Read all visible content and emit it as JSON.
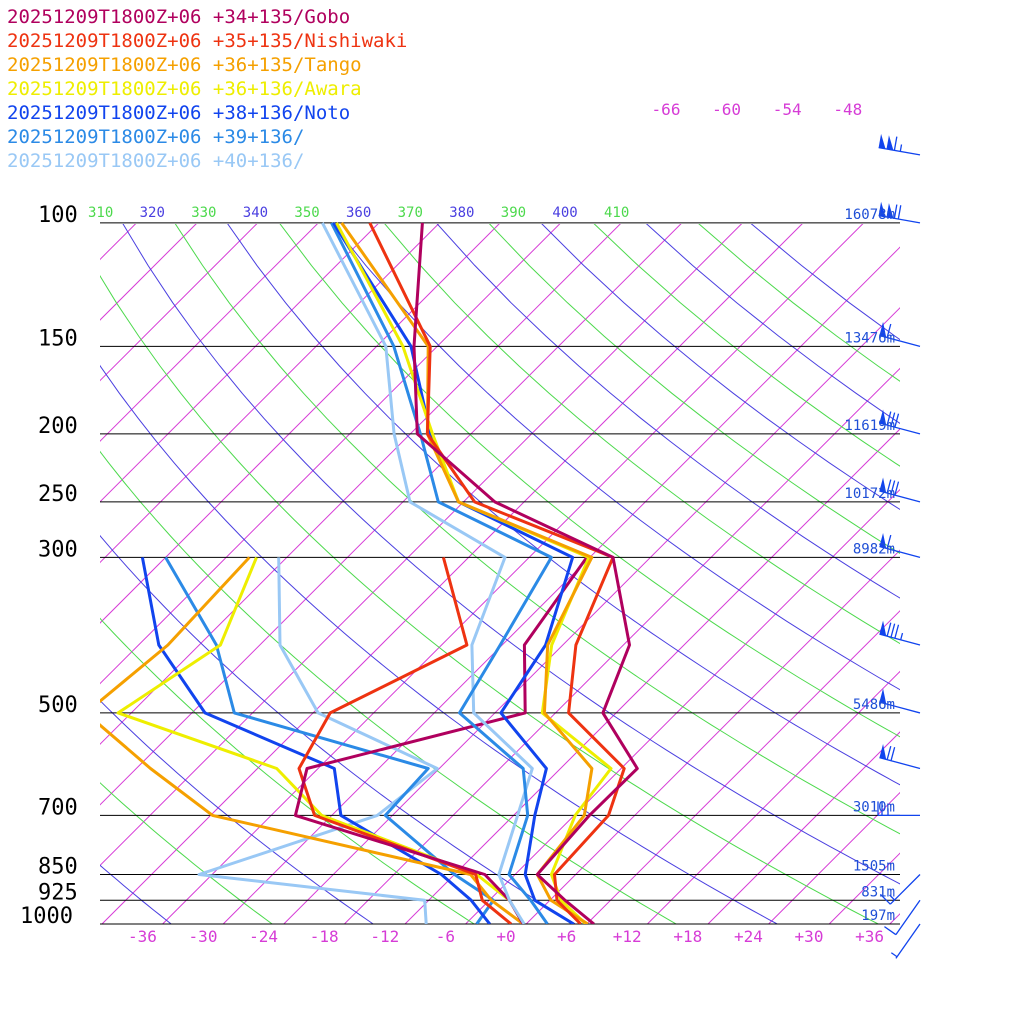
{
  "chart_data": {
    "type": "line",
    "legend": [
      {
        "label": "20251209T1800Z+06 +34+135/Gobo",
        "color": "#b0005e"
      },
      {
        "label": "20251209T1800Z+06 +35+135/Nishiwaki",
        "color": "#ee3311"
      },
      {
        "label": "20251209T1800Z+06 +36+135/Tango",
        "color": "#f5a000"
      },
      {
        "label": "20251209T1800Z+06 +36+136/Awara",
        "color": "#eeee00"
      },
      {
        "label": "20251209T1800Z+06 +38+136/Noto",
        "color": "#1144ee"
      },
      {
        "label": "20251209T1800Z+06 +39+136/",
        "color": "#2b8ae6"
      },
      {
        "label": "20251209T1800Z+06 +40+136/",
        "color": "#99c8f5"
      }
    ],
    "pressure_levels": [
      {
        "p": 100,
        "label": "100",
        "height": "16078m"
      },
      {
        "p": 150,
        "label": "150",
        "height": "13476m"
      },
      {
        "p": 200,
        "label": "200",
        "height": "11619m"
      },
      {
        "p": 250,
        "label": "250",
        "height": "10172m"
      },
      {
        "p": 300,
        "label": "300",
        "height": "8982m"
      },
      {
        "p": 500,
        "label": "500",
        "height": "5486m"
      },
      {
        "p": 700,
        "label": "700",
        "height": "3010m"
      },
      {
        "p": 850,
        "label": "850",
        "height": "1505m"
      },
      {
        "p": 925,
        "label": "925",
        "height": "831m"
      },
      {
        "p": 1000,
        "label": "1000",
        "height": "197m"
      }
    ],
    "x_tick_labels": [
      "-36",
      "-30",
      "-24",
      "-18",
      "-12",
      "-6",
      "+0",
      "+6",
      "+12",
      "+18",
      "+24",
      "+30",
      "+36"
    ],
    "x_ticks": [
      -36,
      -30,
      -24,
      -18,
      -12,
      -6,
      0,
      6,
      12,
      18,
      24,
      30,
      36
    ],
    "upper_temp_labels": [
      "-66",
      "-60",
      "-54",
      "-48"
    ],
    "upper_temps": [
      -66,
      -60,
      -54,
      -48
    ],
    "theta_labels": [
      "310",
      "320",
      "330",
      "340",
      "350",
      "360",
      "370",
      "380",
      "390",
      "400",
      "410"
    ],
    "thetas": [
      310,
      320,
      330,
      340,
      350,
      360,
      370,
      380,
      390,
      400,
      410
    ],
    "temperature_profiles": [
      [
        [
          1000,
          8.7
        ],
        [
          925,
          3.5
        ],
        [
          850,
          -1.8
        ],
        [
          700,
          -2.5
        ],
        [
          600,
          -2.4
        ],
        [
          500,
          -11.3
        ],
        [
          400,
          -15.4
        ],
        [
          300,
          -25.7
        ],
        [
          250,
          -42.9
        ],
        [
          200,
          -57.3
        ],
        [
          150,
          -66.3
        ],
        [
          100,
          -77.7
        ]
      ],
      [
        [
          1000,
          7.4
        ],
        [
          925,
          2.7
        ],
        [
          850,
          -0.1
        ],
        [
          700,
          -0.6
        ],
        [
          600,
          -3.7
        ],
        [
          500,
          -14.7
        ],
        [
          400,
          -20.7
        ],
        [
          300,
          -25.7
        ],
        [
          250,
          -44.9
        ],
        [
          200,
          -56.3
        ],
        [
          150,
          -64.7
        ],
        [
          100,
          -82.9
        ]
      ],
      [
        [
          1000,
          8.1
        ],
        [
          925,
          2.1
        ],
        [
          850,
          -1.8
        ],
        [
          700,
          -3.0
        ],
        [
          600,
          -6.9
        ],
        [
          500,
          -17.1
        ],
        [
          400,
          -23.5
        ],
        [
          300,
          -27.8
        ],
        [
          250,
          -46.5
        ],
        [
          200,
          -56.3
        ],
        [
          150,
          -64.9
        ],
        [
          100,
          -85.7
        ]
      ],
      [
        [
          1000,
          7.9
        ],
        [
          925,
          3.1
        ],
        [
          850,
          -0.4
        ],
        [
          700,
          -3.9
        ],
        [
          600,
          -5.0
        ],
        [
          500,
          -17.3
        ],
        [
          400,
          -23.1
        ],
        [
          300,
          -28.1
        ],
        [
          250,
          -46.5
        ],
        [
          200,
          -55.8
        ],
        [
          150,
          -67.4
        ],
        [
          100,
          -86.2
        ]
      ],
      [
        [
          1000,
          6.7
        ],
        [
          925,
          0.5
        ],
        [
          850,
          -3.0
        ],
        [
          700,
          -7.9
        ],
        [
          600,
          -11.4
        ],
        [
          500,
          -21.4
        ],
        [
          400,
          -23.7
        ],
        [
          300,
          -29.7
        ],
        [
          250,
          -46.5
        ],
        [
          200,
          -56.0
        ],
        [
          150,
          -66.6
        ],
        [
          100,
          -86.5
        ]
      ],
      [
        [
          1000,
          4.1
        ],
        [
          925,
          0.1
        ],
        [
          850,
          -4.6
        ],
        [
          700,
          -8.6
        ],
        [
          600,
          -13.7
        ],
        [
          500,
          -25.5
        ],
        [
          400,
          -28.2
        ],
        [
          300,
          -31.8
        ],
        [
          250,
          -48.5
        ],
        [
          200,
          -57.0
        ],
        [
          150,
          -68.3
        ],
        [
          100,
          -86.7
        ]
      ],
      [
        [
          1000,
          1.8
        ],
        [
          925,
          -2.0
        ],
        [
          850,
          -5.6
        ],
        [
          700,
          -9.6
        ],
        [
          600,
          -12.8
        ],
        [
          500,
          -24.1
        ],
        [
          400,
          -31.0
        ],
        [
          300,
          -36.4
        ],
        [
          250,
          -51.3
        ],
        [
          200,
          -59.6
        ],
        [
          150,
          -69.1
        ],
        [
          100,
          -87.6
        ]
      ]
    ],
    "dewpoint_profiles": [
      [
        [
          1000,
          1.7
        ],
        [
          925,
          -2.0
        ],
        [
          850,
          -7.0
        ],
        [
          700,
          -31.6
        ],
        [
          600,
          -35.1
        ],
        [
          500,
          -19.0
        ],
        [
          400,
          -25.8
        ],
        [
          300,
          -28.3
        ]
      ],
      [
        [
          1000,
          0.5
        ],
        [
          925,
          -4.7
        ],
        [
          850,
          -7.9
        ],
        [
          700,
          -29.7
        ],
        [
          600,
          -35.9
        ],
        [
          500,
          -38.3
        ],
        [
          400,
          -31.5
        ],
        [
          300,
          -42.5
        ]
      ],
      [
        [
          1000,
          1.7
        ],
        [
          925,
          -3.8
        ],
        [
          850,
          -8.4
        ],
        [
          700,
          -39.8
        ],
        [
          600,
          -50.6
        ],
        [
          500,
          -62.5
        ],
        [
          400,
          -61.1
        ],
        [
          300,
          -61.7
        ]
      ],
      [
        [
          1000,
          1.7
        ],
        [
          925,
          -2.0
        ],
        [
          850,
          -7.8
        ],
        [
          700,
          -29.0
        ],
        [
          600,
          -38.1
        ],
        [
          500,
          -59.3
        ],
        [
          400,
          -55.9
        ],
        [
          300,
          -61.0
        ]
      ],
      [
        [
          1000,
          -1.6
        ],
        [
          925,
          -5.8
        ],
        [
          850,
          -11.3
        ],
        [
          700,
          -27.1
        ],
        [
          600,
          -32.4
        ],
        [
          500,
          -50.7
        ],
        [
          400,
          -62.0
        ],
        [
          300,
          -72.3
        ]
      ],
      [
        [
          1000,
          -2.9
        ],
        [
          925,
          -3.6
        ],
        [
          850,
          -10.0
        ],
        [
          700,
          -22.7
        ],
        [
          600,
          -23.1
        ],
        [
          500,
          -47.8
        ],
        [
          400,
          -56.3
        ],
        [
          300,
          -70.0
        ]
      ],
      [
        [
          1000,
          -7.9
        ],
        [
          925,
          -10.4
        ],
        [
          850,
          -35.3
        ],
        [
          700,
          -23.5
        ],
        [
          600,
          -22.2
        ],
        [
          500,
          -39.5
        ],
        [
          400,
          -50.0
        ],
        [
          300,
          -58.8
        ]
      ]
    ],
    "wind_barbs": [
      {
        "p": 80,
        "dir": 280,
        "speed_kt": 115
      },
      {
        "p": 100,
        "dir": 280,
        "speed_kt": 120
      },
      {
        "p": 150,
        "dir": 285,
        "speed_kt": 60
      },
      {
        "p": 200,
        "dir": 285,
        "speed_kt": 80
      },
      {
        "p": 250,
        "dir": 285,
        "speed_kt": 80
      },
      {
        "p": 300,
        "dir": 285,
        "speed_kt": 60
      },
      {
        "p": 400,
        "dir": 285,
        "speed_kt": 85
      },
      {
        "p": 500,
        "dir": 285,
        "speed_kt": 50
      },
      {
        "p": 600,
        "dir": 285,
        "speed_kt": 70
      },
      {
        "p": 700,
        "dir": 270,
        "speed_kt": 25
      },
      {
        "p": 850,
        "dir": 225,
        "speed_kt": 15
      },
      {
        "p": 925,
        "dir": 215,
        "speed_kt": 10
      },
      {
        "p": 1000,
        "dir": 215,
        "speed_kt": 5
      }
    ]
  }
}
